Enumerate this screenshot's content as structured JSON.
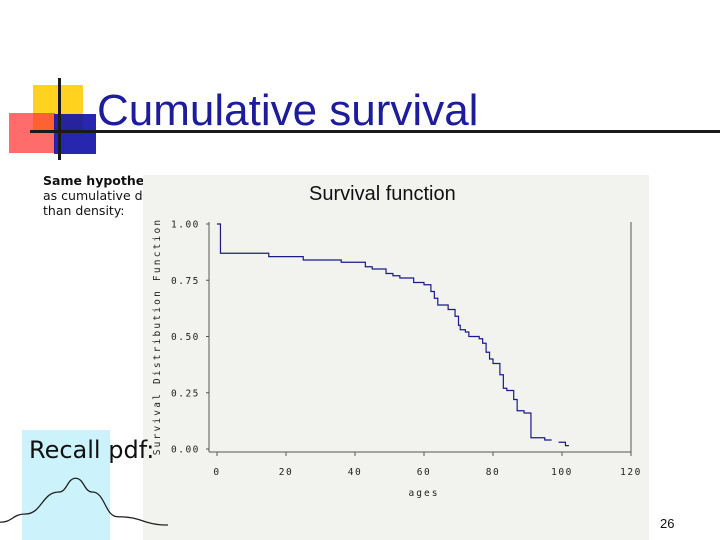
{
  "slide": {
    "title": "Cumulative survival",
    "intro_bold": "Same hypothetical data,",
    "intro_rest": " plotted as cumulative distribution rather than density:",
    "recall_text": "Recall pdf:",
    "page_number": "26"
  },
  "colors": {
    "title": "#1c1c9c",
    "series_line": "#1a1a8c",
    "panel_bg": "#f2f2ef",
    "recall_bg": "#ccf2fb"
  },
  "chart_data": {
    "type": "line",
    "title": "Survival function",
    "xlabel": "ages",
    "ylabel": "Survival Distribution Function",
    "xlim": [
      0,
      120
    ],
    "ylim": [
      0,
      1
    ],
    "x_ticks": [
      "0",
      "20",
      "40",
      "60",
      "80",
      "100",
      "120"
    ],
    "y_ticks": [
      "0.00",
      "0.25",
      "0.50",
      "0.75",
      "1.00"
    ],
    "grid": false,
    "step": true,
    "series": [
      {
        "points": [
          [
            0,
            1.0
          ],
          [
            1,
            0.87
          ],
          [
            15,
            0.855
          ],
          [
            25,
            0.84
          ],
          [
            36,
            0.83
          ],
          [
            43,
            0.81
          ],
          [
            45,
            0.8
          ],
          [
            49,
            0.78
          ],
          [
            51,
            0.77
          ],
          [
            53,
            0.76
          ],
          [
            57,
            0.74
          ],
          [
            60,
            0.73
          ],
          [
            62,
            0.7
          ],
          [
            63,
            0.67
          ],
          [
            64,
            0.64
          ],
          [
            67,
            0.62
          ],
          [
            69,
            0.59
          ],
          [
            70,
            0.55
          ],
          [
            70.5,
            0.53
          ],
          [
            72,
            0.52
          ],
          [
            73,
            0.5
          ],
          [
            76,
            0.49
          ],
          [
            77,
            0.47
          ],
          [
            78,
            0.43
          ],
          [
            79,
            0.4
          ],
          [
            80,
            0.38
          ],
          [
            82,
            0.33
          ],
          [
            83,
            0.27
          ],
          [
            84,
            0.26
          ],
          [
            86,
            0.22
          ],
          [
            87,
            0.17
          ],
          [
            89,
            0.16
          ],
          [
            91,
            0.05
          ],
          [
            95,
            0.04
          ]
        ],
        "end_x": 97,
        "tail": [
          [
            99,
            0.03
          ],
          [
            101,
            0.03
          ],
          [
            101,
            0.015
          ],
          [
            102,
            0.015
          ]
        ]
      }
    ],
    "recall_pdf_shape": [
      [
        0,
        0.05
      ],
      [
        0.15,
        0.2
      ],
      [
        0.35,
        0.6
      ],
      [
        0.45,
        0.85
      ],
      [
        0.55,
        0.6
      ],
      [
        0.7,
        0.15
      ],
      [
        1,
        0.0
      ]
    ]
  }
}
